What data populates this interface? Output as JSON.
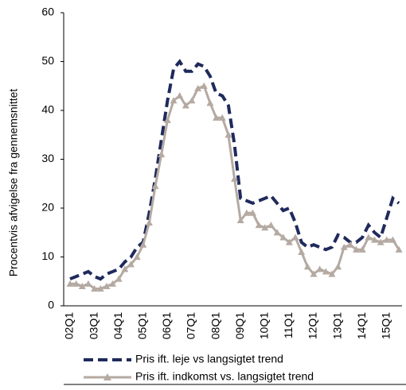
{
  "chart_data": {
    "type": "line",
    "ylabel": "Procentvis afvigelse fra gennemsnittet",
    "categories": [
      "02Q1",
      null,
      null,
      null,
      "03Q1",
      null,
      null,
      null,
      "04Q1",
      null,
      null,
      null,
      "05Q1",
      null,
      null,
      null,
      "06Q1",
      null,
      null,
      null,
      "07Q1",
      null,
      null,
      null,
      "08Q1",
      null,
      null,
      null,
      "09Q1",
      null,
      null,
      null,
      "10Q1",
      null,
      null,
      null,
      "11Q1",
      null,
      null,
      null,
      "12Q1",
      null,
      null,
      null,
      "13Q1",
      null,
      null,
      null,
      "14Q1",
      null,
      null,
      null,
      "15Q1",
      null,
      null
    ],
    "series": [
      {
        "name": "Pris ift. leje vs langsigtet trend",
        "color": "#1f2a5c",
        "style": "dashed",
        "values": [
          5.5,
          6,
          6.5,
          7,
          6,
          5.5,
          6.5,
          7,
          7.5,
          9,
          10,
          12,
          13,
          19,
          26,
          34,
          42,
          48.5,
          50,
          48,
          48,
          49.5,
          49,
          47,
          43.5,
          43,
          41,
          33,
          22,
          21.5,
          21,
          21.5,
          22,
          22.5,
          21,
          19.5,
          20,
          17,
          13,
          12,
          12.5,
          12,
          11.5,
          12,
          14.5,
          14,
          13,
          13,
          14,
          16.5,
          15,
          14,
          18,
          22,
          21
        ]
      },
      {
        "name": "Pris ift. indkomst vs. langsigtet trend",
        "color": "#b5aaa2",
        "style": "triangles",
        "values": [
          4.5,
          4.5,
          4,
          4.5,
          3.5,
          3.5,
          4,
          4.5,
          5.5,
          7.5,
          8.5,
          10,
          12.5,
          17,
          24.5,
          31,
          38,
          42,
          43,
          41,
          42,
          44.5,
          45,
          41.5,
          38.5,
          38.5,
          35,
          26,
          17.5,
          19,
          19,
          16.5,
          16,
          16.5,
          15,
          14,
          13,
          14,
          11,
          8,
          6.5,
          7.5,
          7,
          6.5,
          8,
          12,
          12.5,
          11.5,
          11.5,
          14,
          13.5,
          13,
          13.5,
          13.5,
          11.5
        ]
      }
    ],
    "ylim": [
      0,
      60
    ],
    "yticks": [
      0,
      10,
      20,
      30,
      40,
      50,
      60
    ],
    "grid": false,
    "legend": "bottom"
  }
}
